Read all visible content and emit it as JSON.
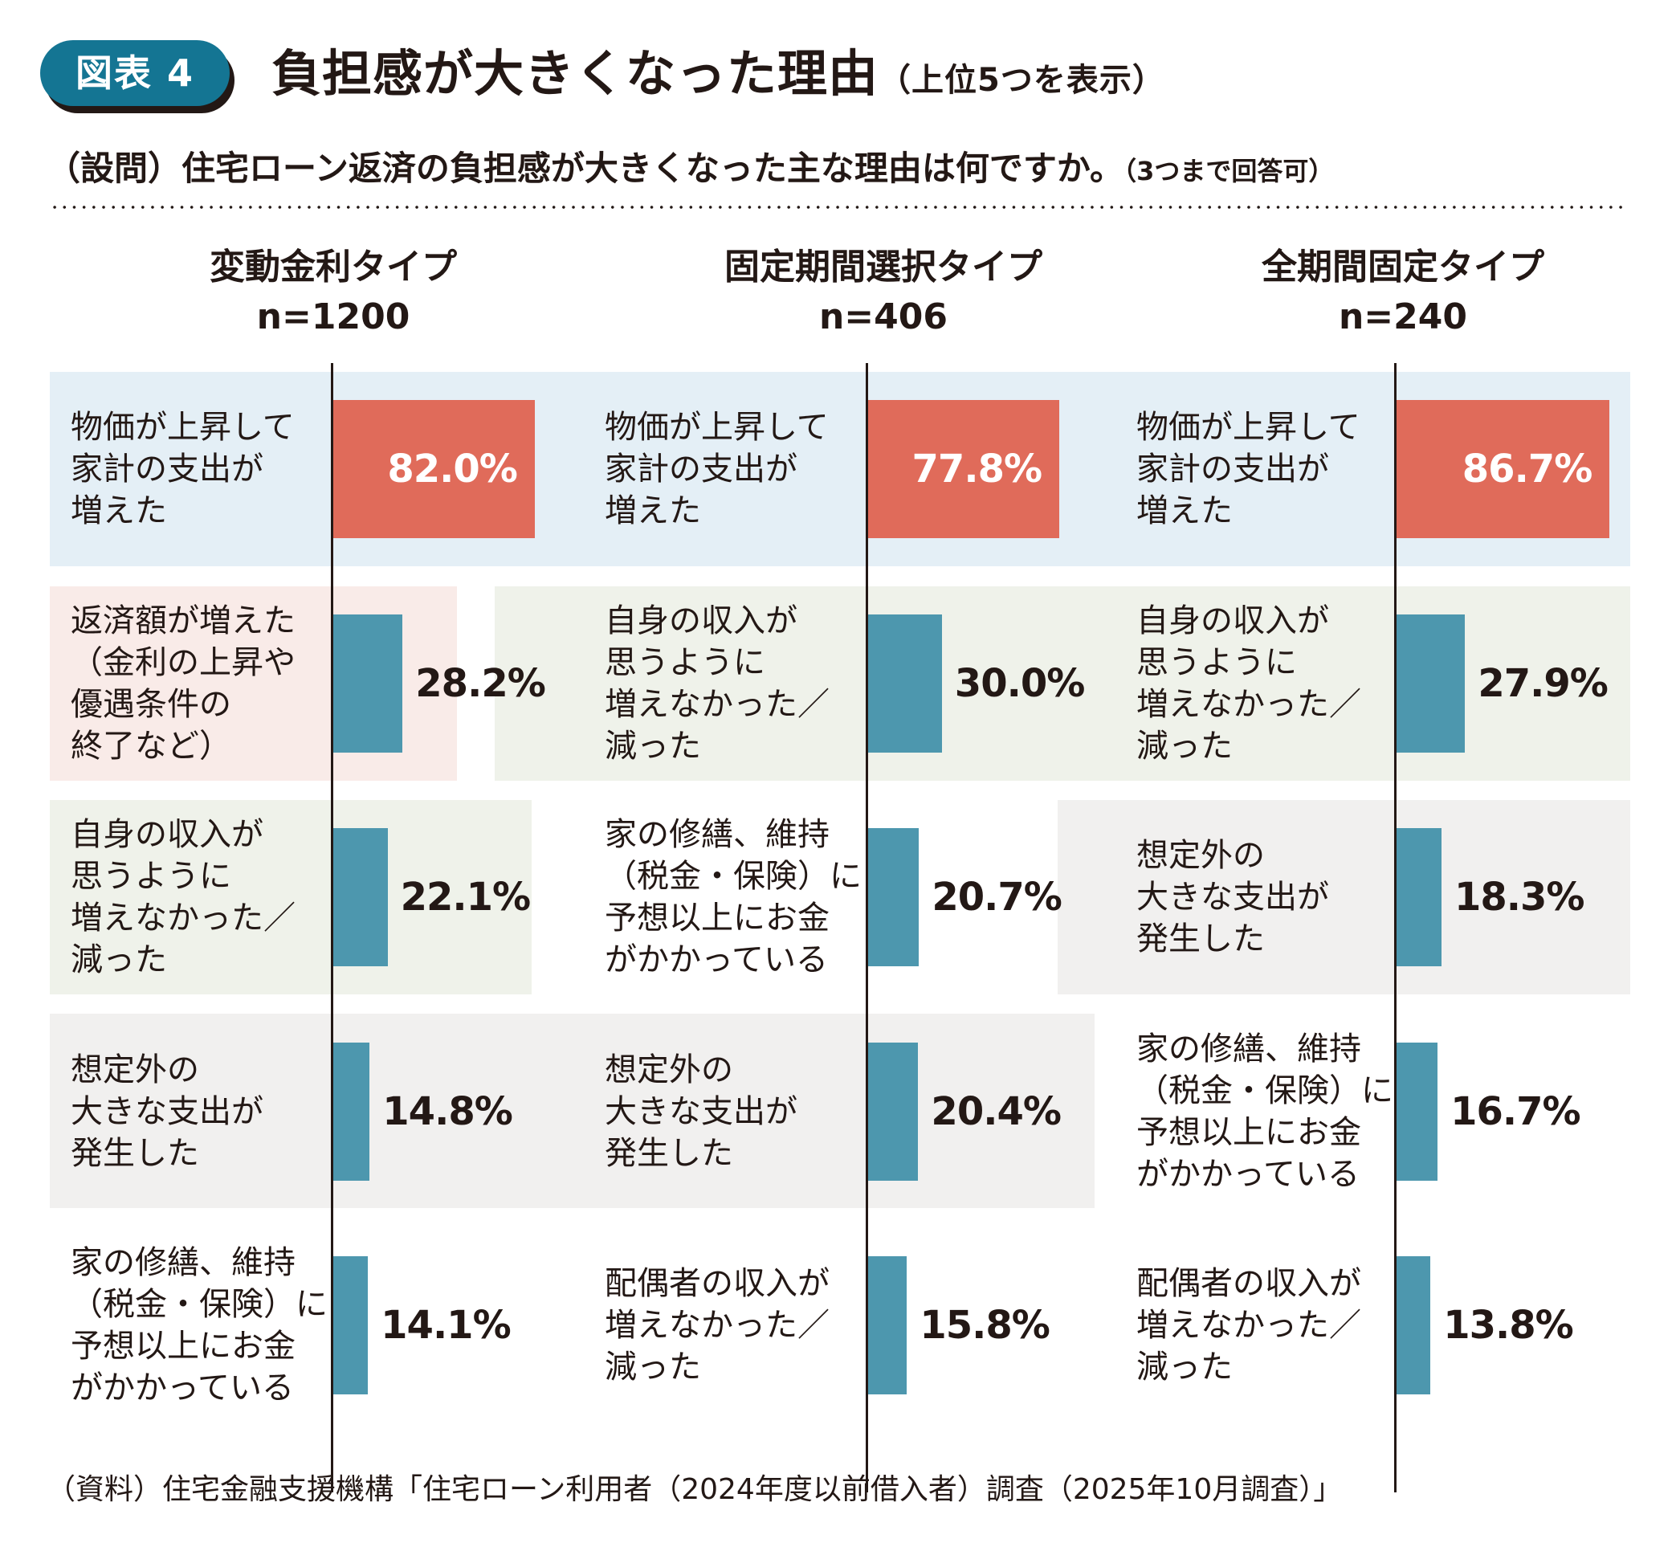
{
  "header": {
    "badge": "図表 4",
    "title": "負担感が大きくなった理由",
    "title_note": "（上位5つを表示）",
    "question": "（設問）住宅ローン返済の負担感が大きくなった主な理由は何ですか。",
    "question_note": "（3つまで回答可）"
  },
  "colors": {
    "badge": "#147593",
    "top_bar": "#e06b5a",
    "bar": "#4d97ae",
    "band_price": "#e4eff6",
    "band_repayment": "#f9ebe8",
    "band_income": "#eff2ea",
    "band_unexpected": "#f1f0ef"
  },
  "chart_data": {
    "type": "bar",
    "orientation": "horizontal",
    "title": "負担感が大きくなった理由（上位5つを表示）",
    "unit": "%",
    "panels": [
      {
        "name": "変動金利タイプ",
        "n": "n=1200",
        "items": [
          {
            "label": "物価が上昇して\n家計の支出が\n増えた",
            "value": 82.0,
            "display": "82.0%"
          },
          {
            "label": "返済額が増えた\n（金利の上昇や\n優遇条件の\n終了など）",
            "value": 28.2,
            "display": "28.2%"
          },
          {
            "label": "自身の収入が\n思うように\n増えなかった／\n減った",
            "value": 22.1,
            "display": "22.1%"
          },
          {
            "label": "想定外の\n大きな支出が\n発生した",
            "value": 14.8,
            "display": "14.8%"
          },
          {
            "label": "家の修繕、維持\n（税金・保険）に\n予想以上にお金\nがかかっている",
            "value": 14.1,
            "display": "14.1%"
          }
        ]
      },
      {
        "name": "固定期間選択タイプ",
        "n": "n=406",
        "items": [
          {
            "label": "物価が上昇して\n家計の支出が\n増えた",
            "value": 77.8,
            "display": "77.8%"
          },
          {
            "label": "自身の収入が\n思うように\n増えなかった／\n減った",
            "value": 30.0,
            "display": "30.0%"
          },
          {
            "label": "家の修繕、維持\n（税金・保険）に\n予想以上にお金\nがかかっている",
            "value": 20.7,
            "display": "20.7%"
          },
          {
            "label": "想定外の\n大きな支出が\n発生した",
            "value": 20.4,
            "display": "20.4%"
          },
          {
            "label": "配偶者の収入が\n増えなかった／\n減った",
            "value": 15.8,
            "display": "15.8%"
          }
        ]
      },
      {
        "name": "全期間固定タイプ",
        "n": "n=240",
        "items": [
          {
            "label": "物価が上昇して\n家計の支出が\n増えた",
            "value": 86.7,
            "display": "86.7%"
          },
          {
            "label": "自身の収入が\n思うように\n増えなかった／\n減った",
            "value": 27.9,
            "display": "27.9%"
          },
          {
            "label": "想定外の\n大きな支出が\n発生した",
            "value": 18.3,
            "display": "18.3%"
          },
          {
            "label": "家の修繕、維持\n（税金・保険）に\n予想以上にお金\nがかかっている",
            "value": 16.7,
            "display": "16.7%"
          },
          {
            "label": "配偶者の収入が\n増えなかった／\n減った",
            "value": 13.8,
            "display": "13.8%"
          }
        ]
      }
    ]
  },
  "footer": {
    "source": "（資料）住宅金融支援機構「住宅ローン利用者（2024年度以前借入者）調査（2025年10月調査）」"
  }
}
